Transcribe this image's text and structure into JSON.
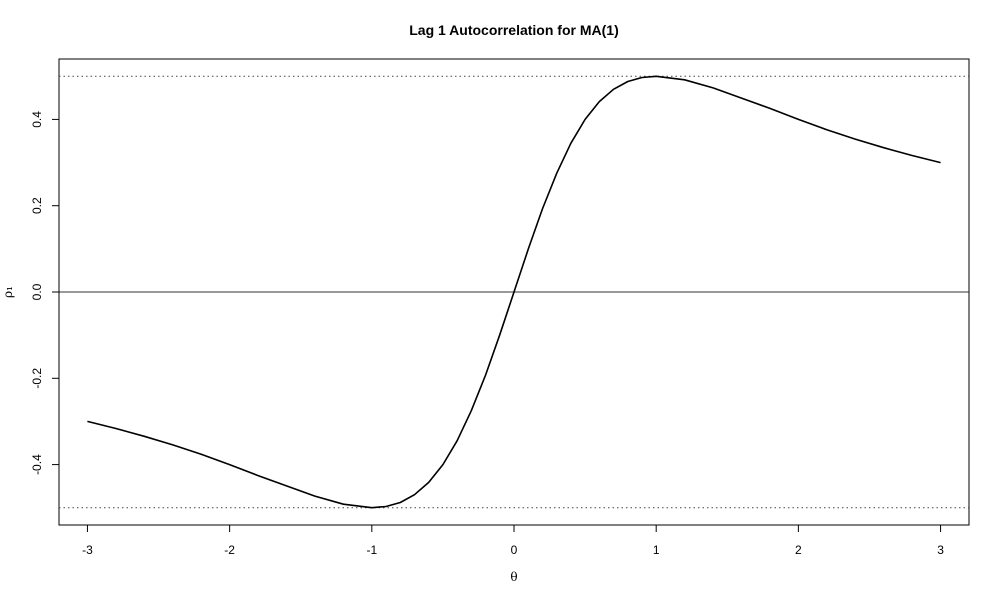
{
  "chart_data": {
    "type": "line",
    "title": "Lag 1 Autocorrelation for MA(1)",
    "xlabel": "θ",
    "ylabel": "ρ₁",
    "xlim": [
      -3.2,
      3.2
    ],
    "ylim": [
      -0.54,
      0.54
    ],
    "xticks": [
      -3,
      -2,
      -1,
      0,
      1,
      2,
      3
    ],
    "xtick_labels": [
      "-3",
      "-2",
      "-1",
      "0",
      "1",
      "2",
      "3"
    ],
    "yticks": [
      -0.4,
      -0.2,
      0.0,
      0.2,
      0.4
    ],
    "ytick_labels": [
      "-0.4",
      "-0.2",
      "0.0",
      "0.2",
      "0.4"
    ],
    "reference_lines": [
      {
        "y": 0.5,
        "style": "dotted"
      },
      {
        "y": -0.5,
        "style": "dotted"
      },
      {
        "y": 0,
        "style": "solid"
      }
    ],
    "series": [
      {
        "x": [
          -3.0,
          -2.8,
          -2.6,
          -2.4,
          -2.2,
          -2.0,
          -1.8,
          -1.6,
          -1.4,
          -1.2,
          -1.0,
          -0.9,
          -0.8,
          -0.7,
          -0.6,
          -0.5,
          -0.4,
          -0.3,
          -0.2,
          -0.1,
          0.0,
          0.1,
          0.2,
          0.3,
          0.4,
          0.5,
          0.6,
          0.7,
          0.8,
          0.9,
          1.0,
          1.2,
          1.4,
          1.6,
          1.8,
          2.0,
          2.2,
          2.4,
          2.6,
          2.8,
          3.0
        ],
        "y": [
          -0.3,
          -0.3164,
          -0.3344,
          -0.3543,
          -0.3761,
          -0.4,
          -0.4255,
          -0.4494,
          -0.473,
          -0.4918,
          -0.5,
          -0.4972,
          -0.4878,
          -0.4698,
          -0.4412,
          -0.4,
          -0.3448,
          -0.2752,
          -0.1923,
          -0.099,
          0.0,
          0.099,
          0.1923,
          0.2752,
          0.3448,
          0.4,
          0.4412,
          0.4698,
          0.4878,
          0.4972,
          0.5,
          0.4918,
          0.473,
          0.4494,
          0.4255,
          0.4,
          0.3761,
          0.3543,
          0.3344,
          0.3164,
          0.3
        ]
      }
    ]
  }
}
